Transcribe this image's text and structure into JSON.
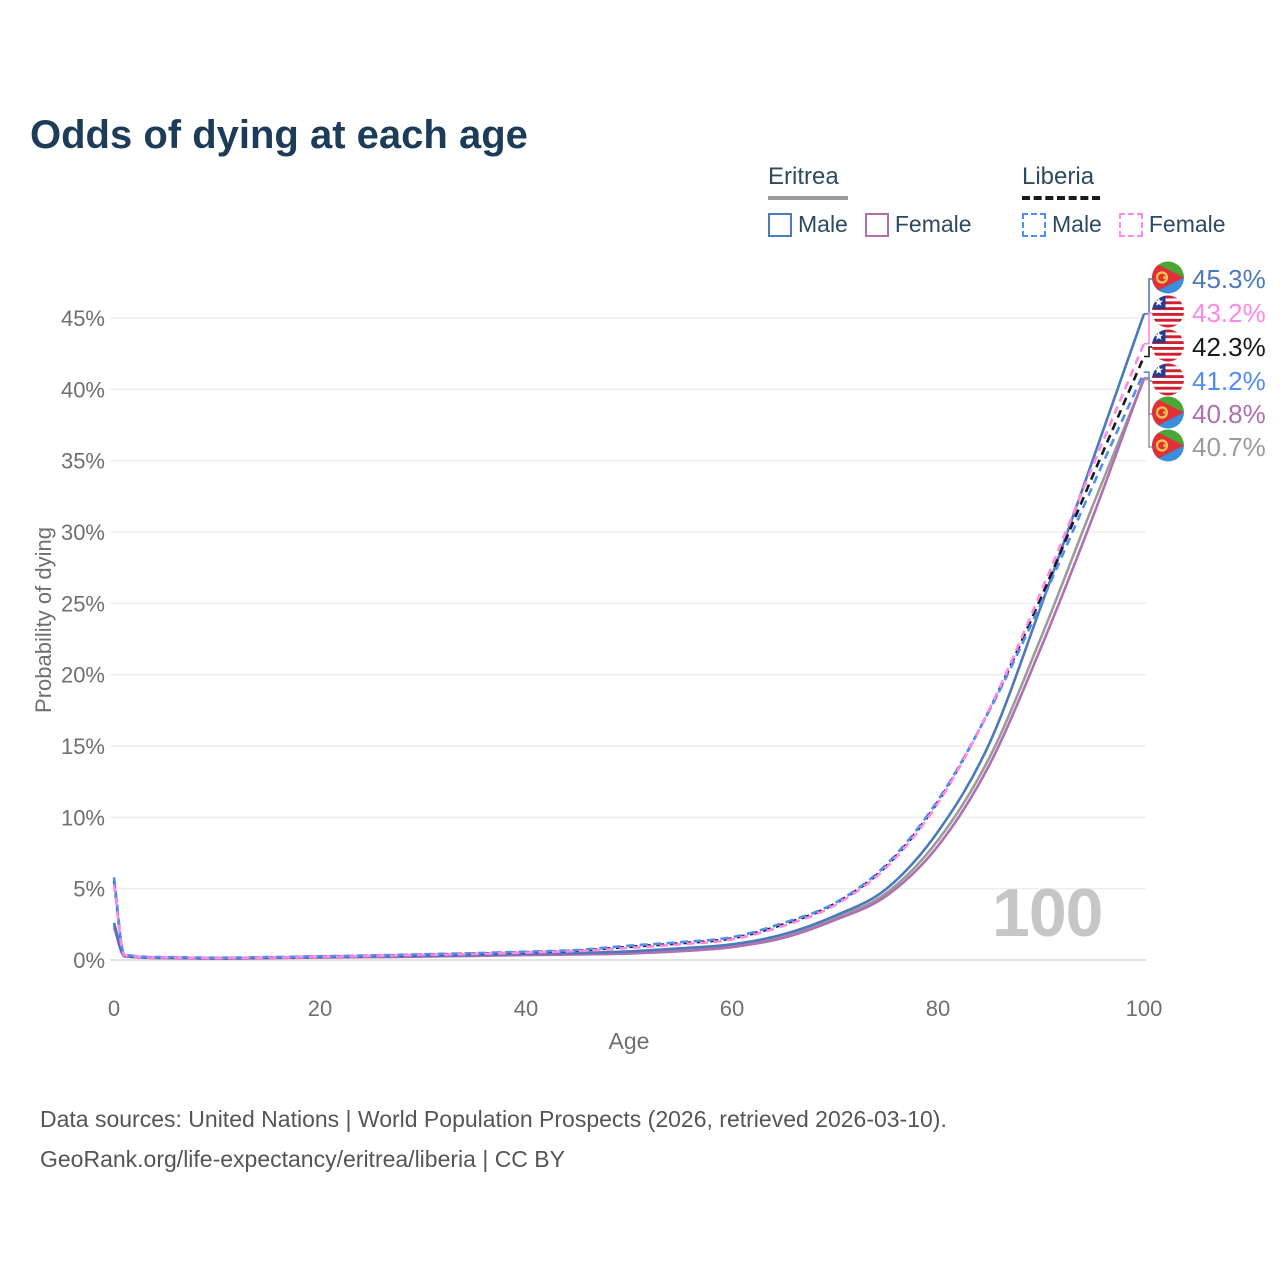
{
  "title": "Odds of dying at each age",
  "legend": {
    "groups": [
      {
        "name": "Eritrea",
        "line_style": "solid",
        "swatch_color": "#9b9b9b",
        "items": [
          {
            "label": "Male",
            "color": "#4a79bc"
          },
          {
            "label": "Female",
            "color": "#b06fb0"
          }
        ]
      },
      {
        "name": "Liberia",
        "line_style": "dashed",
        "swatch_color": "#1a1a1a",
        "items": [
          {
            "label": "Male",
            "color": "#4f8df1"
          },
          {
            "label": "Female",
            "color": "#ff87e6"
          }
        ]
      }
    ]
  },
  "chart_data": {
    "type": "line",
    "title": "Odds of dying at each age",
    "xlabel": "Age",
    "ylabel": "Probability of dying",
    "xlim": [
      0,
      100
    ],
    "ylim": [
      0,
      47
    ],
    "x_ticks": [
      0,
      20,
      40,
      60,
      80,
      100
    ],
    "y_ticks": [
      0,
      5,
      10,
      15,
      20,
      25,
      30,
      35,
      40,
      45
    ],
    "y_tick_suffix": "%",
    "grid": "horizontal-only",
    "legend_position": "top-right",
    "x": [
      0,
      1,
      5,
      10,
      15,
      20,
      25,
      30,
      35,
      40,
      45,
      50,
      55,
      60,
      65,
      70,
      75,
      80,
      85,
      90,
      95,
      100
    ],
    "series": [
      {
        "id": "eritrea-total",
        "name": "Eritrea Total",
        "country": "Eritrea",
        "sex": "Total",
        "color": "#9b9b9b",
        "dashed": false,
        "values": [
          2.45,
          0.28,
          0.14,
          0.11,
          0.15,
          0.19,
          0.23,
          0.27,
          0.32,
          0.39,
          0.45,
          0.52,
          0.72,
          1.0,
          1.68,
          2.95,
          4.7,
          8.4,
          14.2,
          22.6,
          31.8,
          40.7
        ]
      },
      {
        "id": "eritrea-female",
        "name": "Eritrea Female",
        "country": "Eritrea",
        "sex": "Female",
        "color": "#b06fb0",
        "dashed": false,
        "values": [
          2.3,
          0.26,
          0.13,
          0.1,
          0.13,
          0.17,
          0.2,
          0.24,
          0.29,
          0.34,
          0.39,
          0.45,
          0.62,
          0.9,
          1.55,
          2.8,
          4.5,
          8.0,
          13.7,
          21.9,
          31.0,
          40.8
        ]
      },
      {
        "id": "eritrea-male",
        "name": "Eritrea Male",
        "country": "Eritrea",
        "sex": "Male",
        "color": "#4a79bc",
        "dashed": false,
        "values": [
          2.6,
          0.3,
          0.16,
          0.13,
          0.17,
          0.22,
          0.26,
          0.3,
          0.36,
          0.44,
          0.5,
          0.6,
          0.82,
          1.1,
          1.8,
          3.1,
          5.0,
          9.0,
          15.2,
          24.8,
          35.0,
          45.3
        ]
      },
      {
        "id": "liberia-total",
        "name": "Liberia Total",
        "country": "Liberia",
        "sex": "Total",
        "color": "#1a1a1a",
        "dashed": true,
        "values": [
          5.55,
          0.36,
          0.18,
          0.14,
          0.18,
          0.24,
          0.3,
          0.37,
          0.45,
          0.55,
          0.66,
          0.92,
          1.17,
          1.52,
          2.5,
          3.95,
          6.6,
          11.1,
          17.55,
          25.4,
          33.9,
          42.3
        ]
      },
      {
        "id": "liberia-male",
        "name": "Liberia Male",
        "country": "Liberia",
        "sex": "Male",
        "color": "#4f8df1",
        "dashed": true,
        "values": [
          5.8,
          0.38,
          0.2,
          0.16,
          0.2,
          0.26,
          0.32,
          0.4,
          0.48,
          0.58,
          0.7,
          1.0,
          1.25,
          1.6,
          2.6,
          4.0,
          6.7,
          11.2,
          17.5,
          25.0,
          33.2,
          41.2
        ]
      },
      {
        "id": "liberia-female",
        "name": "Liberia Female",
        "country": "Liberia",
        "sex": "Female",
        "color": "#ff87e6",
        "dashed": true,
        "values": [
          5.3,
          0.34,
          0.17,
          0.13,
          0.17,
          0.22,
          0.28,
          0.35,
          0.42,
          0.52,
          0.63,
          0.85,
          1.1,
          1.45,
          2.4,
          3.85,
          6.5,
          11.0,
          17.6,
          25.8,
          34.6,
          43.2
        ]
      }
    ],
    "end_labels": [
      {
        "series": "eritrea-male",
        "text": "45.3%",
        "value": 45.3,
        "color": "#4a79bc",
        "flag": "eritrea"
      },
      {
        "series": "liberia-female",
        "text": "43.2%",
        "value": 43.2,
        "color": "#ff87e6",
        "flag": "liberia"
      },
      {
        "series": "liberia-total",
        "text": "42.3%",
        "value": 42.3,
        "color": "#1a1a1a",
        "flag": "liberia"
      },
      {
        "series": "liberia-male",
        "text": "41.2%",
        "value": 41.2,
        "color": "#4f8df1",
        "flag": "liberia"
      },
      {
        "series": "eritrea-female",
        "text": "40.8%",
        "value": 40.8,
        "color": "#b06fb0",
        "flag": "eritrea"
      },
      {
        "series": "eritrea-total",
        "text": "40.7%",
        "value": 40.7,
        "color": "#9b9b9b",
        "flag": "eritrea"
      }
    ],
    "colors": {
      "grid": "#ededed",
      "zero_line": "#d8d8d8",
      "tick_text": "#6f6f6f"
    }
  },
  "watermark": "100",
  "footer": {
    "line1": "Data sources: United Nations | World Population Prospects (2026, retrieved 2026-03-10).",
    "line2": "GeoRank.org/life-expectancy/eritrea/liberia | CC BY"
  }
}
